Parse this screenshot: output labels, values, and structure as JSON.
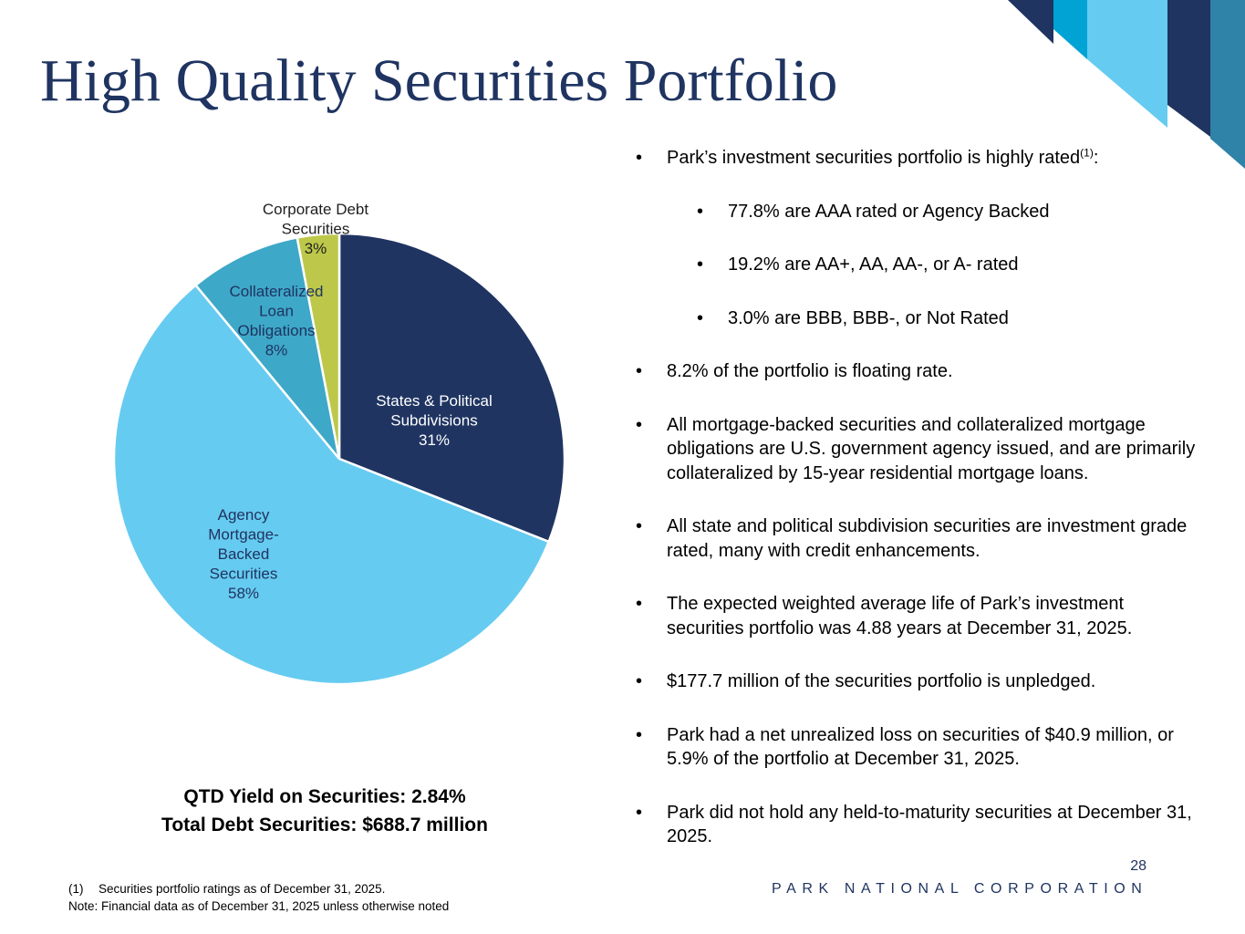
{
  "title": "High Quality Securities Portfolio",
  "colors": {
    "navy": "#1f3461",
    "sky_blue": "#66cbf0",
    "teal": "#3ea8c8",
    "yellow_green": "#bdc84a",
    "cyan": "#00a3d4",
    "steel_blue": "#2f82a8"
  },
  "chart_data": {
    "type": "pie",
    "title": "",
    "slices": [
      {
        "label_lines": [
          "States & Political",
          "Subdivisions"
        ],
        "value": 31,
        "value_label": "31%",
        "color": "#1f3461",
        "text_color": "#ffffff"
      },
      {
        "label_lines": [
          "Agency",
          "Mortgage-",
          "Backed",
          "Securities"
        ],
        "value": 58,
        "value_label": "58%",
        "color": "#66cbf0",
        "text_color": "#1f3461"
      },
      {
        "label_lines": [
          "Collateralized",
          "Loan",
          "Obligations"
        ],
        "value": 8,
        "value_label": "8%",
        "color": "#3ea8c8",
        "text_color": "#1f3461"
      },
      {
        "label_lines": [
          "Corporate Debt",
          "Securities"
        ],
        "value": 3,
        "value_label": "3%",
        "color": "#bdc84a",
        "text_color": "#1f1f1f"
      }
    ]
  },
  "summary": {
    "yield": "QTD Yield on Securities: 2.84%",
    "total": "Total Debt Securities: $688.7 million"
  },
  "bullets": {
    "rated_intro": "Park’s investment securities portfolio is highly rated",
    "rated_intro_ref": "(1)",
    "rated_intro_suffix": ":",
    "aaa": "77.8% are AAA rated or Agency Backed",
    "aa": "19.2% are AA+, AA, AA-, or A- rated",
    "bbb": "3.0% are BBB, BBB-, or Not Rated",
    "floating": "8.2% of the portfolio is floating rate.",
    "mortgage": "All mortgage-backed securities and collateralized mortgage obligations are U.S. government agency issued, and are primarily collateralized by 15-year residential mortgage loans.",
    "state": "All state and political subdivision securities are investment grade rated, many with credit enhancements.",
    "life": "The expected weighted average life of Park’s investment securities portfolio was 4.88 years at December 31, 2025.",
    "unpledged": "$177.7 million of the securities portfolio is unpledged.",
    "unrealized": "Park had a net unrealized loss on securities of $40.9 million, or 5.9% of the portfolio at December 31, 2025.",
    "htm": "Park did not hold any held-to-maturity securities at December 31, 2025."
  },
  "footnotes": {
    "ref": "(1)",
    "ratings": "Securities portfolio ratings as of December 31, 2025.",
    "note": "Note: Financial data as of December 31, 2025 unless otherwise noted"
  },
  "page_number": "28",
  "brand": "PARK NATIONAL CORPORATION"
}
